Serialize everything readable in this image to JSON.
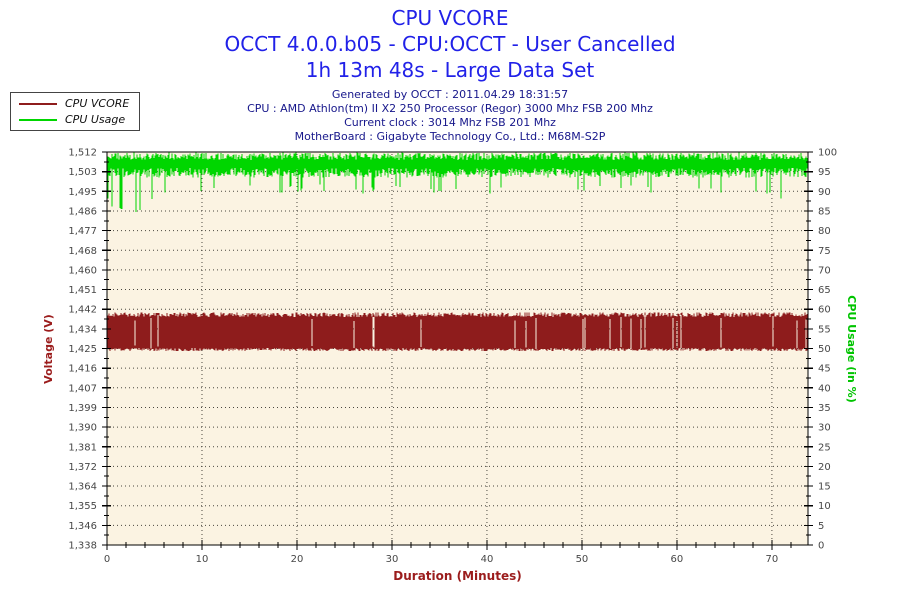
{
  "header": {
    "title": "CPU VCORE",
    "subtitle1": "OCCT 4.0.0.b05 - CPU:OCCT - User Cancelled",
    "subtitle2": "1h 13m 48s - Large Data Set",
    "title_color": "#2121e8"
  },
  "meta": {
    "lines": [
      "Generated by OCCT : 2011.04.29 18:31:57",
      "CPU : AMD Athlon(tm) II X2 250 Processor (Regor) 3000 Mhz FSB 200 Mhz",
      "Current clock : 3014 Mhz FSB 201 Mhz",
      "MotherBoard : Gigabyte Technology Co., Ltd.: M68M-S2P"
    ],
    "color": "#17178b"
  },
  "legend": {
    "items": [
      {
        "label": "CPU VCORE",
        "color": "#8e1c1c"
      },
      {
        "label": "CPU Usage",
        "color": "#00d600"
      }
    ]
  },
  "chart_data": {
    "type": "line",
    "title": "CPU VCORE",
    "xlabel": "Duration (Minutes)",
    "xlabel_color": "#9b1c1c",
    "x_range": [
      0,
      73.8
    ],
    "x_major_ticks": [
      0,
      10,
      20,
      30,
      40,
      50,
      60,
      70
    ],
    "x_major_tick_labels": [
      "0",
      "10",
      "20",
      "30",
      "40",
      "50",
      "60",
      "70"
    ],
    "x_minor_step": 2,
    "plot_bg": "#fbf3e2",
    "grid": {
      "h_dotted_every_tick": true,
      "v_dotted_every_major": true,
      "dot_color": "#4a473f"
    },
    "tick_label_color": "#474747",
    "left_axis": {
      "label": "Voltage (V)",
      "color": "#9b1c1c",
      "min": 1.338,
      "max": 1.512,
      "tick_labels": [
        "1,512",
        "1,503",
        "1,495",
        "1,486",
        "1,477",
        "1,468",
        "1,460",
        "1,451",
        "1,442",
        "1,434",
        "1,425",
        "1,416",
        "1,407",
        "1,399",
        "1,390",
        "1,381",
        "1,372",
        "1,364",
        "1,355",
        "1,346",
        "1,338"
      ]
    },
    "right_axis": {
      "label": "CPU Usage (in %)",
      "color": "#00c400",
      "min": 0,
      "max": 100,
      "tick_labels": [
        "100",
        "95",
        "90",
        "85",
        "80",
        "75",
        "70",
        "65",
        "60",
        "55",
        "50",
        "45",
        "40",
        "35",
        "30",
        "25",
        "20",
        "15",
        "10",
        "5",
        "0"
      ]
    },
    "series": [
      {
        "name": "CPU VCORE",
        "axis": "left",
        "color": "#8e1c1c",
        "style": "dense-oscillating-band",
        "band_low": 1.4245,
        "band_high": 1.44,
        "description": "Voltage toggles rapidly between ~1.425 V and ~1.440 V for the whole run"
      },
      {
        "name": "CPU Usage",
        "axis": "right",
        "color": "#00d600",
        "style": "noisy-line",
        "typical_high": 99.8,
        "typical_low": 93.5,
        "mean": 96.5,
        "dip_envelope_t": [
          0,
          1,
          2,
          3,
          4,
          5,
          6,
          8,
          10,
          14,
          18,
          22,
          26,
          30,
          34,
          38,
          42,
          46,
          50,
          54,
          58,
          62,
          66,
          70,
          73.8
        ],
        "dip_envelope_v": [
          89,
          86,
          88,
          85,
          87,
          90,
          91,
          91,
          91,
          92,
          91,
          92,
          91,
          92,
          91,
          92,
          91,
          92,
          91,
          92,
          91,
          92,
          91,
          90,
          90
        ],
        "description": "Usage holds ~94-100% with deeper dips to ~85-88% during the first five minutes"
      }
    ]
  }
}
